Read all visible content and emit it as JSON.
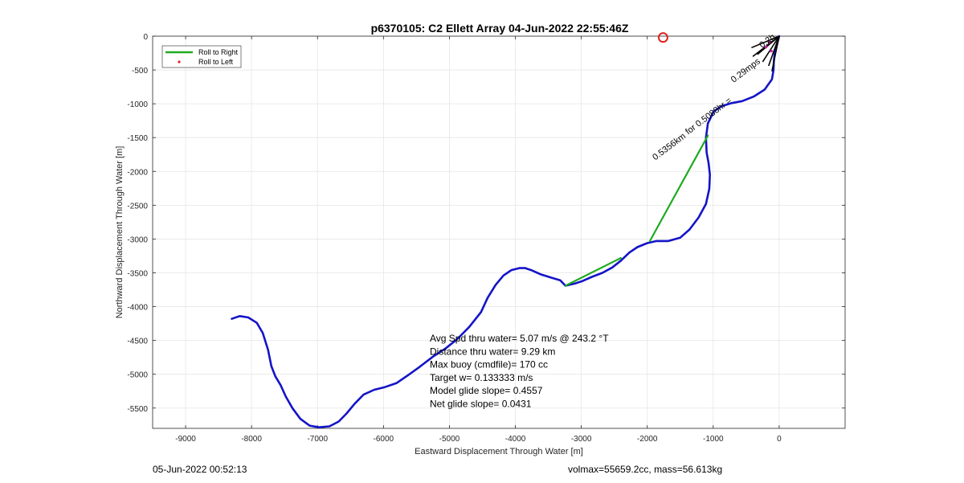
{
  "chart_data": {
    "type": "line",
    "title": "p6370105: C2 Ellett Array 04-Jun-2022 22:55:46Z",
    "xlabel": "Eastward Displacement Through Water [m]",
    "ylabel": "Northward Displacement Through Water [m]",
    "xlim": [
      -9500,
      1000
    ],
    "ylim": [
      -5800,
      0
    ],
    "xticks": [
      -9000,
      -8000,
      -7000,
      -6000,
      -5000,
      -4000,
      -3000,
      -2000,
      -1000,
      0
    ],
    "yticks": [
      0,
      -500,
      -1000,
      -1500,
      -2000,
      -2500,
      -3000,
      -3500,
      -4000,
      -4500,
      -5000,
      -5500
    ],
    "xtick_labels": [
      "-9000",
      "-8000",
      "-7000",
      "-6000",
      "-5000",
      "-4000",
      "-3000",
      "-2000",
      "-1000",
      "0"
    ],
    "ytick_labels": [
      "0",
      "-500",
      "-1000",
      "-1500",
      "-2000",
      "-2500",
      "-3000",
      "-3500",
      "-4000",
      "-4500",
      "-5000",
      "-5500"
    ],
    "grid": true,
    "legend_position": "top-left",
    "legend": [
      {
        "label": "Roll to Right",
        "color": "#1faa1f",
        "marker": "line"
      },
      {
        "label": "Roll to Left",
        "color": "#e02020",
        "marker": "dot"
      }
    ],
    "series": [
      {
        "color": "#1414c8",
        "x": [
          -8300,
          -8180,
          -8050,
          -7920,
          -7830,
          -7750,
          -7700,
          -7640,
          -7560,
          -7480,
          -7380,
          -7260,
          -7120,
          -6980,
          -6820,
          -6680,
          -6560,
          -6440,
          -6300,
          -6140,
          -5980,
          -5800,
          -5620,
          -5450,
          -5250,
          -5060,
          -4880,
          -4700,
          -4520,
          -4420,
          -4300,
          -4180,
          -4060,
          -3940,
          -3850,
          -3760,
          -3620,
          -3460,
          -3320,
          -3240
        ],
        "y": [
          -4180,
          -4140,
          -4160,
          -4240,
          -4390,
          -4640,
          -4880,
          -5030,
          -5160,
          -5330,
          -5500,
          -5660,
          -5760,
          -5785,
          -5770,
          -5700,
          -5580,
          -5440,
          -5300,
          -5230,
          -5190,
          -5130,
          -5010,
          -4890,
          -4740,
          -4620,
          -4480,
          -4300,
          -4080,
          -3870,
          -3680,
          -3540,
          -3460,
          -3430,
          -3430,
          -3460,
          -3520,
          -3570,
          -3610,
          -3690
        ]
      },
      {
        "color": "#1414c8",
        "x": [
          -2400,
          -2270,
          -2150,
          -2000,
          -1860,
          -1680,
          -1500,
          -1360,
          -1220,
          -1110,
          -1060,
          -1050,
          -1070,
          -1100,
          -1110,
          -1080,
          -990,
          -860,
          -720,
          -560,
          -380,
          -220,
          -110,
          -85,
          -80,
          -70,
          -40,
          0
        ],
        "y": [
          -3320,
          -3200,
          -3120,
          -3060,
          -3030,
          -3030,
          -2980,
          -2860,
          -2680,
          -2480,
          -2260,
          -2050,
          -1880,
          -1720,
          -1500,
          -1290,
          -1110,
          -1030,
          -990,
          -960,
          -890,
          -790,
          -640,
          -500,
          -370,
          -260,
          -140,
          0
        ]
      },
      {
        "color": "#1414c8",
        "x": [
          -3240,
          -3100,
          -2980,
          -2840,
          -2680,
          -2530,
          -2400
        ],
        "y": [
          -3690,
          -3660,
          -3620,
          -3560,
          -3500,
          -3420,
          -3320
        ]
      },
      {
        "color": "#1faa1f",
        "x": [
          -3240,
          -2400
        ],
        "y": [
          -3690,
          -3280
        ]
      },
      {
        "color": "#1faa1f",
        "x": [
          -1960,
          -1080
        ],
        "y": [
          -3030,
          -1470
        ]
      }
    ],
    "markers": [
      {
        "type": "circle",
        "color": "#e02020",
        "x": -1760,
        "y": -20
      }
    ],
    "annotations": [
      {
        "text": "0.5356km",
        "x": -1880,
        "y": -1840,
        "angle_deg": -37
      },
      {
        "text": "for 0.5088hr =",
        "x": -1380,
        "y": -1460,
        "angle_deg": -37
      },
      {
        "text": "0.29mps",
        "x": -690,
        "y": -690,
        "angle_deg": -37
      },
      {
        "text": "0.2h",
        "x": -260,
        "y": -180,
        "angle_deg": -37
      }
    ],
    "stats": [
      "Avg Spd thru water=  5.07 m/s @ 243.2 °T",
      "Distance thru water=  9.29 km",
      "Max buoy (cmdfile)= 170 cc",
      "Target w= 0.133333 m/s",
      "Model glide slope= 0.4557",
      "Net glide slope= 0.0431"
    ]
  },
  "footer": {
    "left": "05-Jun-2022 00:52:13",
    "right": "volmax=55659.2cc, mass=56.613kg"
  }
}
